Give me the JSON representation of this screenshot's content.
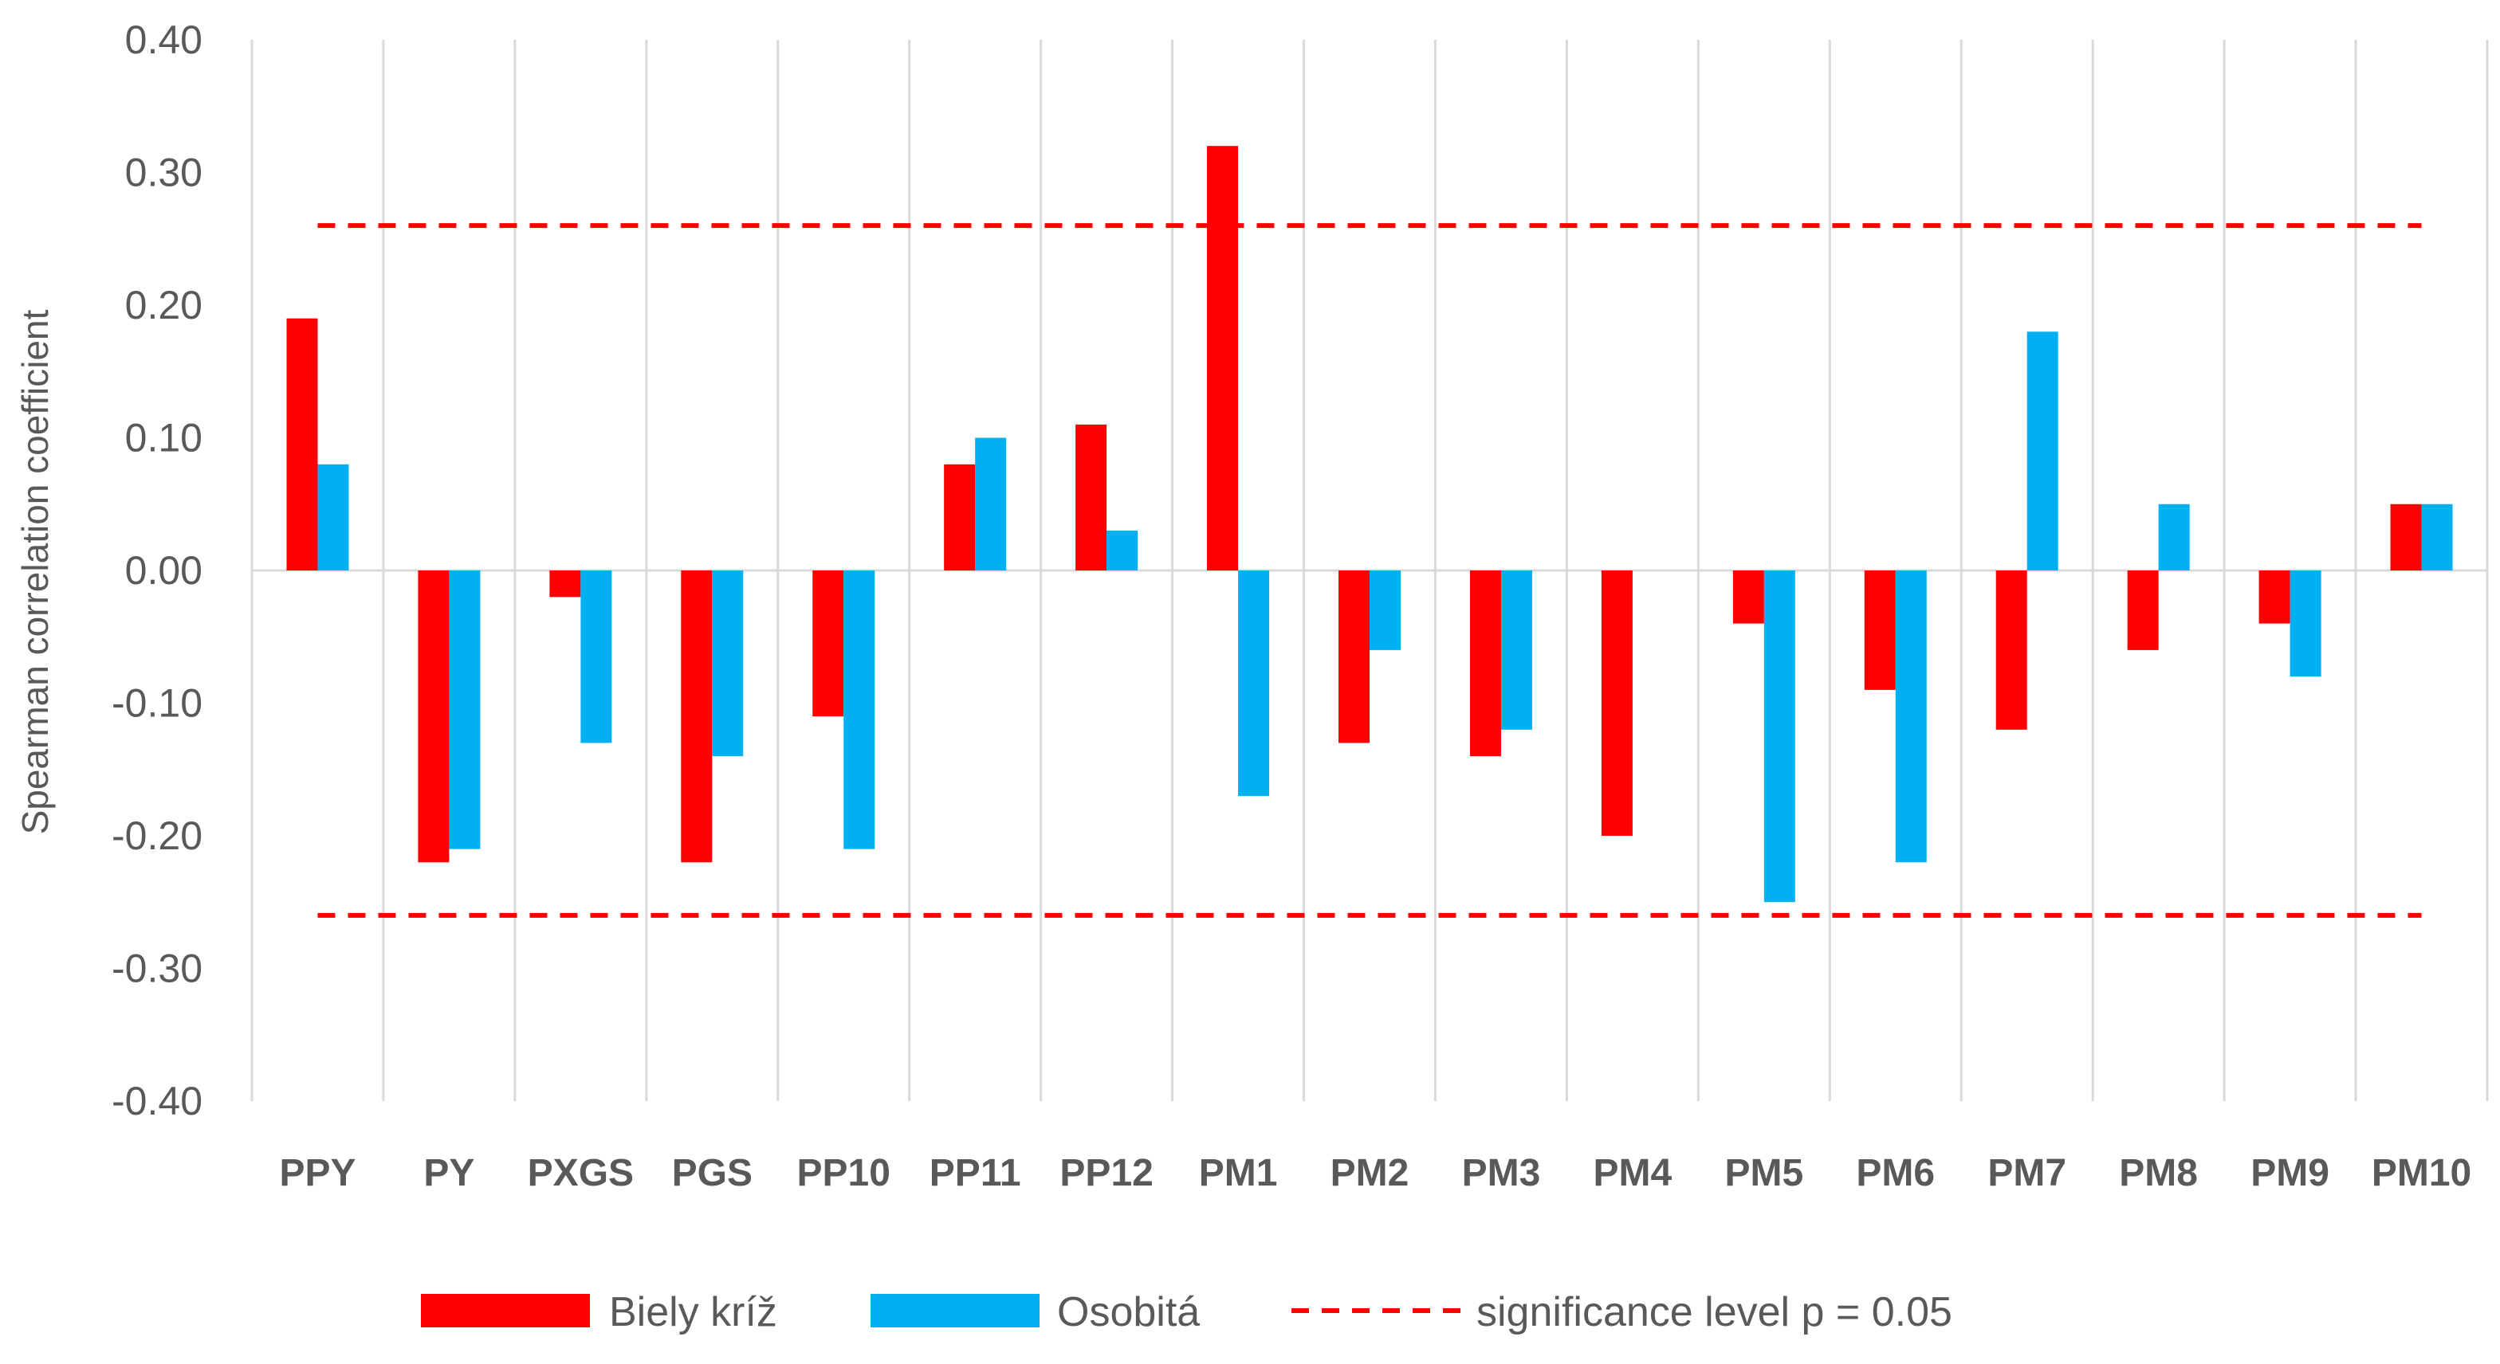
{
  "chart_data": {
    "type": "bar",
    "title": "",
    "xlabel": "",
    "ylabel": "Spearman correlation coefficient",
    "ylim": [
      -0.4,
      0.4
    ],
    "yticks": [
      0.4,
      0.3,
      0.2,
      0.1,
      0.0,
      -0.1,
      -0.2,
      -0.3,
      -0.4
    ],
    "ytick_labels": [
      "0.40",
      "0.30",
      "0.20",
      "0.10",
      "0.00",
      "-0.10",
      "-0.20",
      "-0.30",
      "-0.40"
    ],
    "grid": "vertical",
    "categories": [
      "PPY",
      "PY",
      "PXGS",
      "PGS",
      "PP10",
      "PP11",
      "PP12",
      "PM1",
      "PM2",
      "PM3",
      "PM4",
      "PM5",
      "PM6",
      "PM7",
      "PM8",
      "PM9",
      "PM10"
    ],
    "series": [
      {
        "name": "Biely kríž",
        "color": "#ff0000",
        "values": [
          0.19,
          -0.22,
          -0.02,
          -0.22,
          -0.11,
          0.08,
          0.11,
          0.32,
          -0.13,
          -0.14,
          -0.2,
          -0.04,
          -0.09,
          -0.12,
          -0.06,
          -0.04,
          0.05
        ]
      },
      {
        "name": "Osobitá",
        "color": "#00b0f0",
        "values": [
          0.08,
          -0.21,
          -0.13,
          -0.14,
          -0.21,
          0.1,
          0.03,
          -0.17,
          -0.06,
          -0.12,
          0.0,
          -0.25,
          -0.22,
          0.18,
          0.05,
          -0.08,
          0.05
        ]
      }
    ],
    "reference_lines": [
      {
        "name": "significance level p = 0.05",
        "values": [
          0.26,
          -0.26
        ],
        "color": "#ff0000",
        "style": "dashed"
      }
    ],
    "legend": {
      "position": "bottom",
      "items": [
        "Biely kríž",
        "Osobitá",
        "significance level p = 0.05"
      ]
    }
  }
}
